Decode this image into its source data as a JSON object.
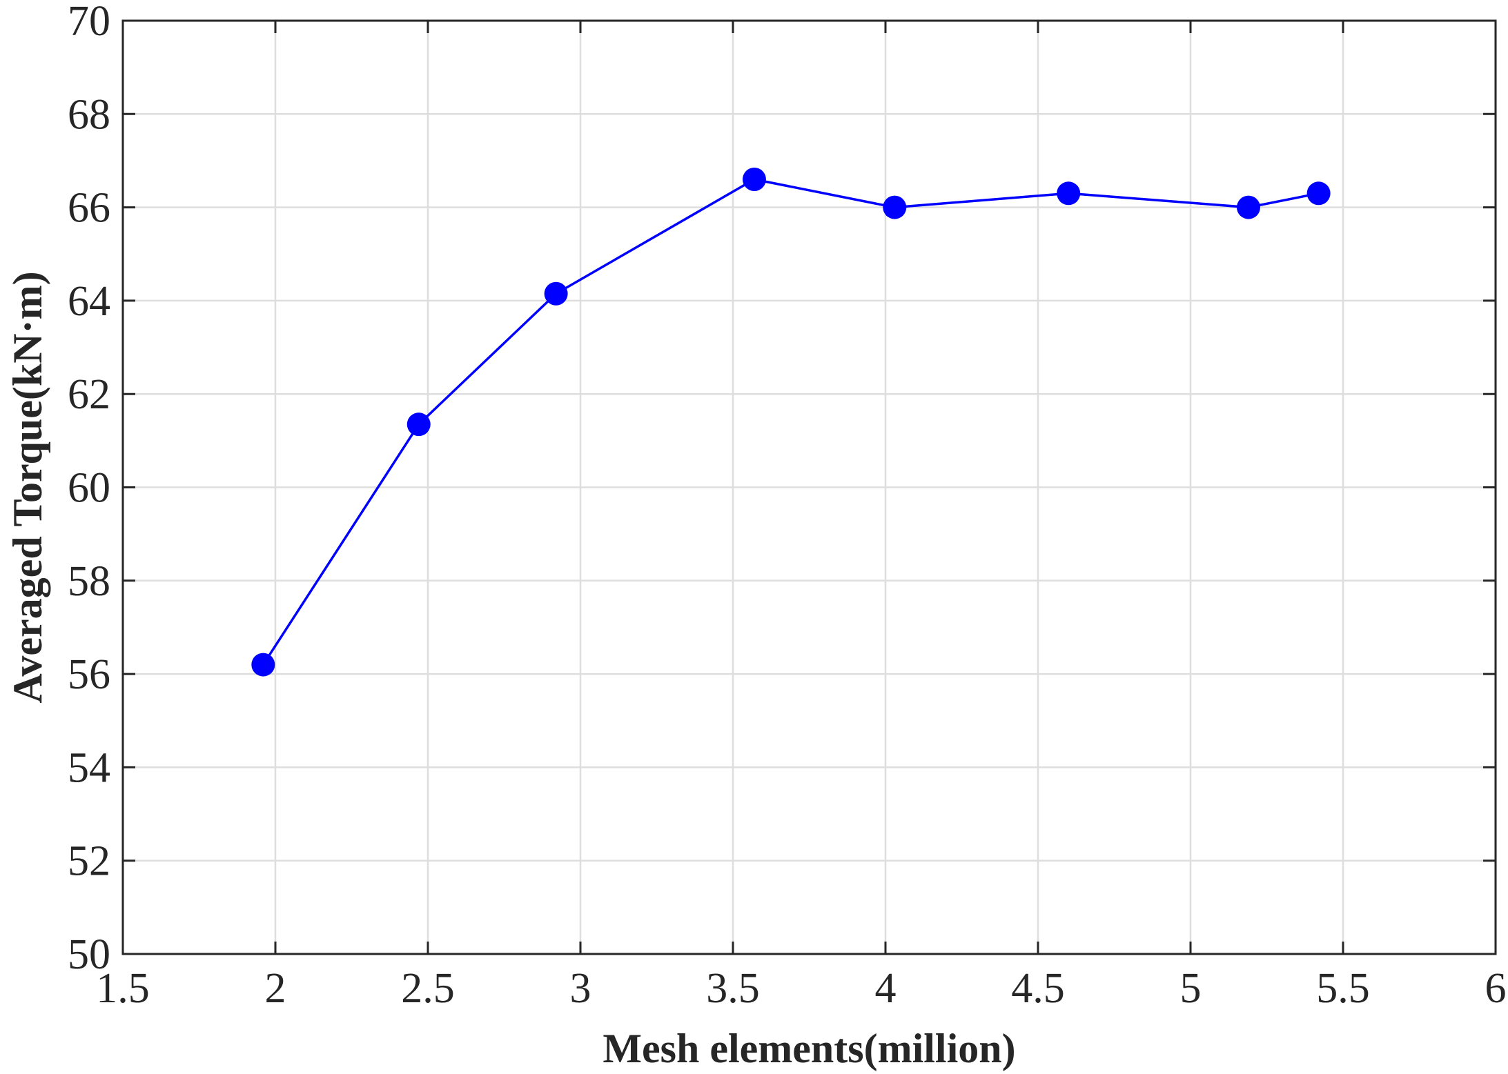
{
  "chart_data": {
    "type": "line",
    "title": "",
    "xlabel": "Mesh elements(million)",
    "ylabel": "Averaged Torque(kN·m)",
    "xlim": [
      1.5,
      6
    ],
    "ylim": [
      50,
      70
    ],
    "xticks": [
      1.5,
      2,
      2.5,
      3,
      3.5,
      4,
      4.5,
      5,
      5.5,
      6
    ],
    "xtick_labels": [
      "1.5",
      "2",
      "2.5",
      "3",
      "3.5",
      "4",
      "4.5",
      "5",
      "5.5",
      "6"
    ],
    "yticks": [
      50,
      52,
      54,
      56,
      58,
      60,
      62,
      64,
      66,
      68,
      70
    ],
    "ytick_labels": [
      "50",
      "52",
      "54",
      "56",
      "58",
      "60",
      "62",
      "64",
      "66",
      "68",
      "70"
    ],
    "grid": true,
    "legend": "none",
    "series": [
      {
        "color": "#0000ff",
        "marker": "circle",
        "x": [
          1.96,
          2.47,
          2.92,
          3.57,
          4.03,
          4.6,
          5.19,
          5.42
        ],
        "y": [
          56.2,
          61.35,
          64.15,
          66.6,
          66.0,
          66.3,
          66.0,
          66.3
        ]
      }
    ]
  }
}
